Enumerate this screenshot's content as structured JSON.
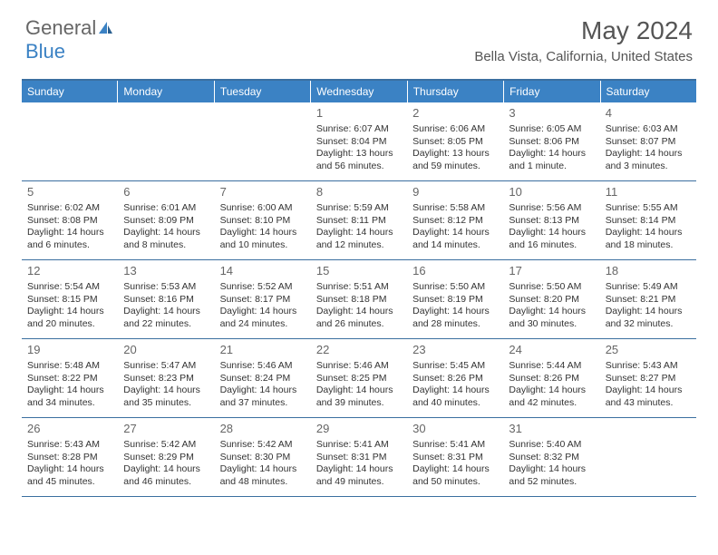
{
  "logo": {
    "text1": "General",
    "text2": "Blue"
  },
  "title": "May 2024",
  "location": "Bella Vista, California, United States",
  "colors": {
    "header_bg": "#3b82c4",
    "header_text": "#ffffff",
    "border": "#3b6fa0",
    "text": "#333333",
    "muted": "#666666"
  },
  "days_of_week": [
    "Sunday",
    "Monday",
    "Tuesday",
    "Wednesday",
    "Thursday",
    "Friday",
    "Saturday"
  ],
  "weeks": [
    [
      null,
      null,
      null,
      {
        "n": "1",
        "sr": "Sunrise: 6:07 AM",
        "ss": "Sunset: 8:04 PM",
        "dl1": "Daylight: 13 hours",
        "dl2": "and 56 minutes."
      },
      {
        "n": "2",
        "sr": "Sunrise: 6:06 AM",
        "ss": "Sunset: 8:05 PM",
        "dl1": "Daylight: 13 hours",
        "dl2": "and 59 minutes."
      },
      {
        "n": "3",
        "sr": "Sunrise: 6:05 AM",
        "ss": "Sunset: 8:06 PM",
        "dl1": "Daylight: 14 hours",
        "dl2": "and 1 minute."
      },
      {
        "n": "4",
        "sr": "Sunrise: 6:03 AM",
        "ss": "Sunset: 8:07 PM",
        "dl1": "Daylight: 14 hours",
        "dl2": "and 3 minutes."
      }
    ],
    [
      {
        "n": "5",
        "sr": "Sunrise: 6:02 AM",
        "ss": "Sunset: 8:08 PM",
        "dl1": "Daylight: 14 hours",
        "dl2": "and 6 minutes."
      },
      {
        "n": "6",
        "sr": "Sunrise: 6:01 AM",
        "ss": "Sunset: 8:09 PM",
        "dl1": "Daylight: 14 hours",
        "dl2": "and 8 minutes."
      },
      {
        "n": "7",
        "sr": "Sunrise: 6:00 AM",
        "ss": "Sunset: 8:10 PM",
        "dl1": "Daylight: 14 hours",
        "dl2": "and 10 minutes."
      },
      {
        "n": "8",
        "sr": "Sunrise: 5:59 AM",
        "ss": "Sunset: 8:11 PM",
        "dl1": "Daylight: 14 hours",
        "dl2": "and 12 minutes."
      },
      {
        "n": "9",
        "sr": "Sunrise: 5:58 AM",
        "ss": "Sunset: 8:12 PM",
        "dl1": "Daylight: 14 hours",
        "dl2": "and 14 minutes."
      },
      {
        "n": "10",
        "sr": "Sunrise: 5:56 AM",
        "ss": "Sunset: 8:13 PM",
        "dl1": "Daylight: 14 hours",
        "dl2": "and 16 minutes."
      },
      {
        "n": "11",
        "sr": "Sunrise: 5:55 AM",
        "ss": "Sunset: 8:14 PM",
        "dl1": "Daylight: 14 hours",
        "dl2": "and 18 minutes."
      }
    ],
    [
      {
        "n": "12",
        "sr": "Sunrise: 5:54 AM",
        "ss": "Sunset: 8:15 PM",
        "dl1": "Daylight: 14 hours",
        "dl2": "and 20 minutes."
      },
      {
        "n": "13",
        "sr": "Sunrise: 5:53 AM",
        "ss": "Sunset: 8:16 PM",
        "dl1": "Daylight: 14 hours",
        "dl2": "and 22 minutes."
      },
      {
        "n": "14",
        "sr": "Sunrise: 5:52 AM",
        "ss": "Sunset: 8:17 PM",
        "dl1": "Daylight: 14 hours",
        "dl2": "and 24 minutes."
      },
      {
        "n": "15",
        "sr": "Sunrise: 5:51 AM",
        "ss": "Sunset: 8:18 PM",
        "dl1": "Daylight: 14 hours",
        "dl2": "and 26 minutes."
      },
      {
        "n": "16",
        "sr": "Sunrise: 5:50 AM",
        "ss": "Sunset: 8:19 PM",
        "dl1": "Daylight: 14 hours",
        "dl2": "and 28 minutes."
      },
      {
        "n": "17",
        "sr": "Sunrise: 5:50 AM",
        "ss": "Sunset: 8:20 PM",
        "dl1": "Daylight: 14 hours",
        "dl2": "and 30 minutes."
      },
      {
        "n": "18",
        "sr": "Sunrise: 5:49 AM",
        "ss": "Sunset: 8:21 PM",
        "dl1": "Daylight: 14 hours",
        "dl2": "and 32 minutes."
      }
    ],
    [
      {
        "n": "19",
        "sr": "Sunrise: 5:48 AM",
        "ss": "Sunset: 8:22 PM",
        "dl1": "Daylight: 14 hours",
        "dl2": "and 34 minutes."
      },
      {
        "n": "20",
        "sr": "Sunrise: 5:47 AM",
        "ss": "Sunset: 8:23 PM",
        "dl1": "Daylight: 14 hours",
        "dl2": "and 35 minutes."
      },
      {
        "n": "21",
        "sr": "Sunrise: 5:46 AM",
        "ss": "Sunset: 8:24 PM",
        "dl1": "Daylight: 14 hours",
        "dl2": "and 37 minutes."
      },
      {
        "n": "22",
        "sr": "Sunrise: 5:46 AM",
        "ss": "Sunset: 8:25 PM",
        "dl1": "Daylight: 14 hours",
        "dl2": "and 39 minutes."
      },
      {
        "n": "23",
        "sr": "Sunrise: 5:45 AM",
        "ss": "Sunset: 8:26 PM",
        "dl1": "Daylight: 14 hours",
        "dl2": "and 40 minutes."
      },
      {
        "n": "24",
        "sr": "Sunrise: 5:44 AM",
        "ss": "Sunset: 8:26 PM",
        "dl1": "Daylight: 14 hours",
        "dl2": "and 42 minutes."
      },
      {
        "n": "25",
        "sr": "Sunrise: 5:43 AM",
        "ss": "Sunset: 8:27 PM",
        "dl1": "Daylight: 14 hours",
        "dl2": "and 43 minutes."
      }
    ],
    [
      {
        "n": "26",
        "sr": "Sunrise: 5:43 AM",
        "ss": "Sunset: 8:28 PM",
        "dl1": "Daylight: 14 hours",
        "dl2": "and 45 minutes."
      },
      {
        "n": "27",
        "sr": "Sunrise: 5:42 AM",
        "ss": "Sunset: 8:29 PM",
        "dl1": "Daylight: 14 hours",
        "dl2": "and 46 minutes."
      },
      {
        "n": "28",
        "sr": "Sunrise: 5:42 AM",
        "ss": "Sunset: 8:30 PM",
        "dl1": "Daylight: 14 hours",
        "dl2": "and 48 minutes."
      },
      {
        "n": "29",
        "sr": "Sunrise: 5:41 AM",
        "ss": "Sunset: 8:31 PM",
        "dl1": "Daylight: 14 hours",
        "dl2": "and 49 minutes."
      },
      {
        "n": "30",
        "sr": "Sunrise: 5:41 AM",
        "ss": "Sunset: 8:31 PM",
        "dl1": "Daylight: 14 hours",
        "dl2": "and 50 minutes."
      },
      {
        "n": "31",
        "sr": "Sunrise: 5:40 AM",
        "ss": "Sunset: 8:32 PM",
        "dl1": "Daylight: 14 hours",
        "dl2": "and 52 minutes."
      },
      null
    ]
  ]
}
